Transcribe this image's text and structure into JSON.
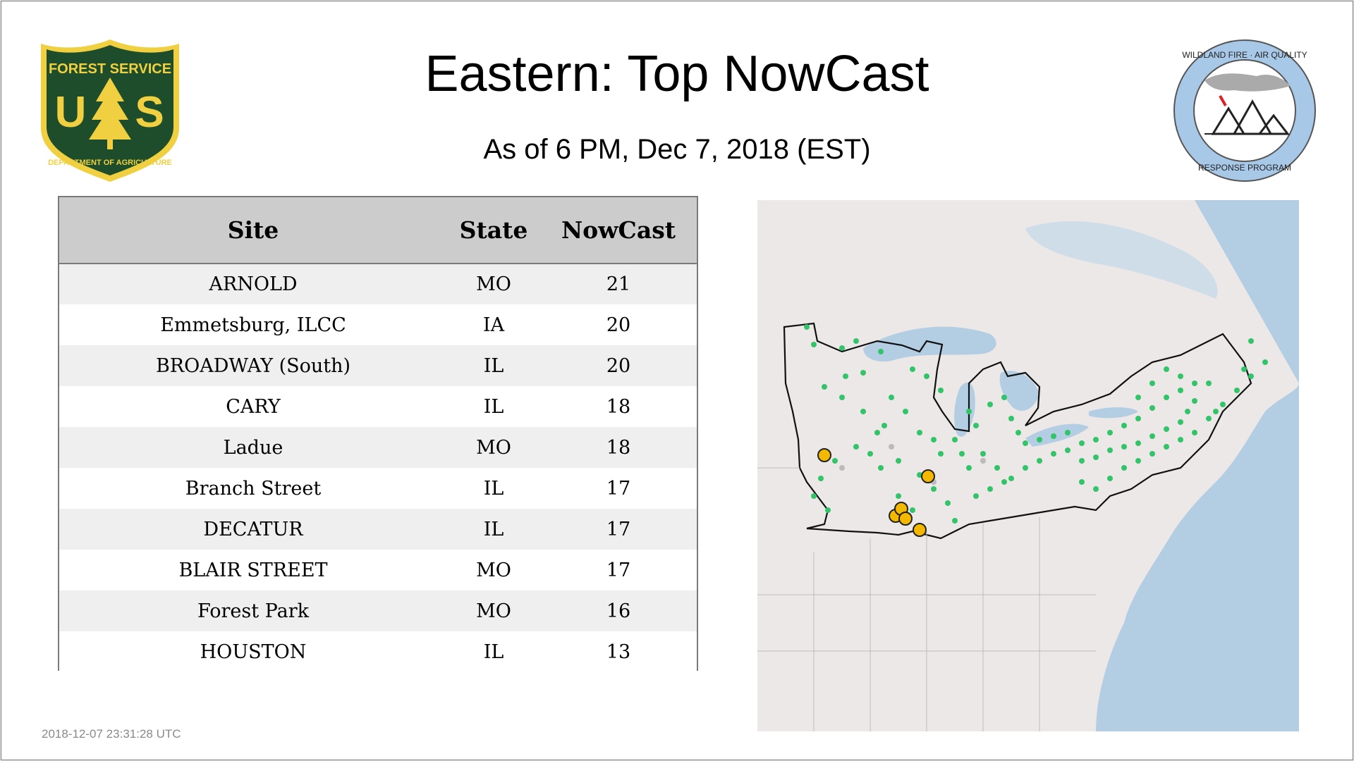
{
  "title": "Eastern: Top NowCast",
  "subtitle": "As of  6 PM, Dec  7, 2018 (EST)",
  "logos": {
    "forest_service": {
      "top_text": "FOREST SERVICE",
      "letters": "US",
      "bottom_text": "DEPARTMENT OF AGRICULTURE",
      "colors": {
        "green": "#1e4d2b",
        "gold": "#f0d040"
      }
    },
    "wildland_fire": {
      "top_text": "WILDLAND FIRE · AIR QUALITY",
      "bottom_text": "RESPONSE PROGRAM",
      "colors": {
        "ring": "#a8c8e8",
        "smoke": "#aaaaaa",
        "fire": "#e02020"
      }
    }
  },
  "table": {
    "headers": {
      "site": "Site",
      "state": "State",
      "nowcast": "NowCast"
    },
    "rows": [
      {
        "site": "ARNOLD",
        "state": "MO",
        "nowcast": "21"
      },
      {
        "site": "Emmetsburg, ILCC",
        "state": "IA",
        "nowcast": "20"
      },
      {
        "site": "BROADWAY (South)",
        "state": "IL",
        "nowcast": "20"
      },
      {
        "site": "CARY",
        "state": "IL",
        "nowcast": "18"
      },
      {
        "site": "Ladue",
        "state": "MO",
        "nowcast": "18"
      },
      {
        "site": "Branch Street",
        "state": "IL",
        "nowcast": "17"
      },
      {
        "site": "DECATUR",
        "state": "IL",
        "nowcast": "17"
      },
      {
        "site": "BLAIR STREET",
        "state": "MO",
        "nowcast": "17"
      },
      {
        "site": "Forest Park",
        "state": "MO",
        "nowcast": "16"
      },
      {
        "site": "HOUSTON",
        "state": "IL",
        "nowcast": "13"
      }
    ]
  },
  "map": {
    "colors": {
      "land": "#ece8e8",
      "water": "#b3cde3",
      "border": "#111111",
      "good": "#33c46a",
      "moderate": "#f5b800",
      "nodata": "#bbbbbb"
    }
  },
  "timestamp": "2018-12-07 23:31:28 UTC"
}
